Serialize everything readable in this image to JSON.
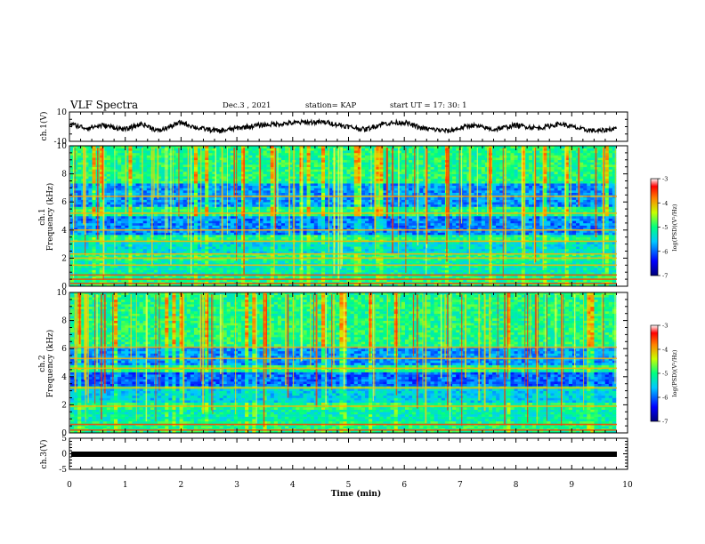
{
  "header": {
    "title": "VLF Spectra",
    "date": "Dec.3  , 2021",
    "station": "station= KAP",
    "start": "start  UT  =   17: 30: 1"
  },
  "chart_data": [
    {
      "id": "ch1-waveform",
      "type": "line",
      "ylabel": "ch.1(V)",
      "ylim": [
        -10,
        10
      ],
      "yticks": [
        "10",
        "-10"
      ],
      "xlim": [
        0,
        10
      ],
      "description_series": "dense oscillating waveform, roughly between -6 and 6 V",
      "trend_points": [
        [
          0,
          2
        ],
        [
          0.3,
          -1
        ],
        [
          0.6,
          1
        ],
        [
          1,
          -2
        ],
        [
          1.3,
          2
        ],
        [
          1.6,
          -3
        ],
        [
          2,
          3
        ],
        [
          2.3,
          -1
        ],
        [
          2.7,
          -3
        ],
        [
          3,
          -1
        ],
        [
          3.4,
          1
        ],
        [
          3.8,
          2
        ],
        [
          4.2,
          3
        ],
        [
          4.6,
          3
        ],
        [
          5,
          0
        ],
        [
          5.3,
          -2
        ],
        [
          5.6,
          2
        ],
        [
          6,
          3
        ],
        [
          6.3,
          -1
        ],
        [
          6.8,
          -3
        ],
        [
          7.2,
          1
        ],
        [
          7.6,
          -2
        ],
        [
          8,
          1
        ],
        [
          8.4,
          -1
        ],
        [
          8.8,
          2
        ],
        [
          9.2,
          -2
        ],
        [
          9.5,
          -3
        ],
        [
          9.8,
          -1
        ]
      ]
    },
    {
      "id": "ch1-spectrogram",
      "type": "heatmap",
      "ylabel": "ch.1\nFrequency (kHz)",
      "ylim": [
        0,
        10
      ],
      "yticks": [
        "0",
        "2",
        "4",
        "6",
        "8",
        "10"
      ],
      "xlim": [
        0,
        10
      ],
      "colorbar": {
        "label": "log(PSD)(V²/Hz)",
        "range": [
          -7,
          -3
        ],
        "ticks": [
          "-3",
          "-4",
          "-5",
          "-6",
          "-7"
        ]
      },
      "bands_khz": [
        0.2,
        0.5,
        0.8,
        1.5,
        2.0,
        2.3,
        3.2,
        4.0,
        5.2,
        6.4
      ]
    },
    {
      "id": "ch2-spectrogram",
      "type": "heatmap",
      "ylabel": "ch.2\nFrequency (kHz)",
      "ylim": [
        0,
        10
      ],
      "yticks": [
        "0",
        "2",
        "4",
        "6",
        "8",
        "10"
      ],
      "xlim": [
        0,
        10
      ],
      "colorbar": {
        "label": "log(PSD)(V²/Hz)",
        "range": [
          -7,
          -3
        ],
        "ticks": [
          "-3",
          "-4",
          "-5",
          "-6",
          "-7"
        ]
      },
      "bands_khz": [
        0.2,
        0.6,
        1.9,
        3.2,
        4.6,
        5.3,
        6.1
      ]
    },
    {
      "id": "ch3-signal",
      "type": "line",
      "ylabel": "ch.3(V)",
      "ylim": [
        -5,
        5
      ],
      "yticks": [
        "5",
        "0",
        "-5"
      ],
      "xlim": [
        0,
        10
      ],
      "xticks": [
        "0",
        "1",
        "2",
        "3",
        "4",
        "5",
        "6",
        "7",
        "8",
        "9",
        "10"
      ],
      "xlabel": "Time  (min)",
      "constant_value": 0
    }
  ]
}
